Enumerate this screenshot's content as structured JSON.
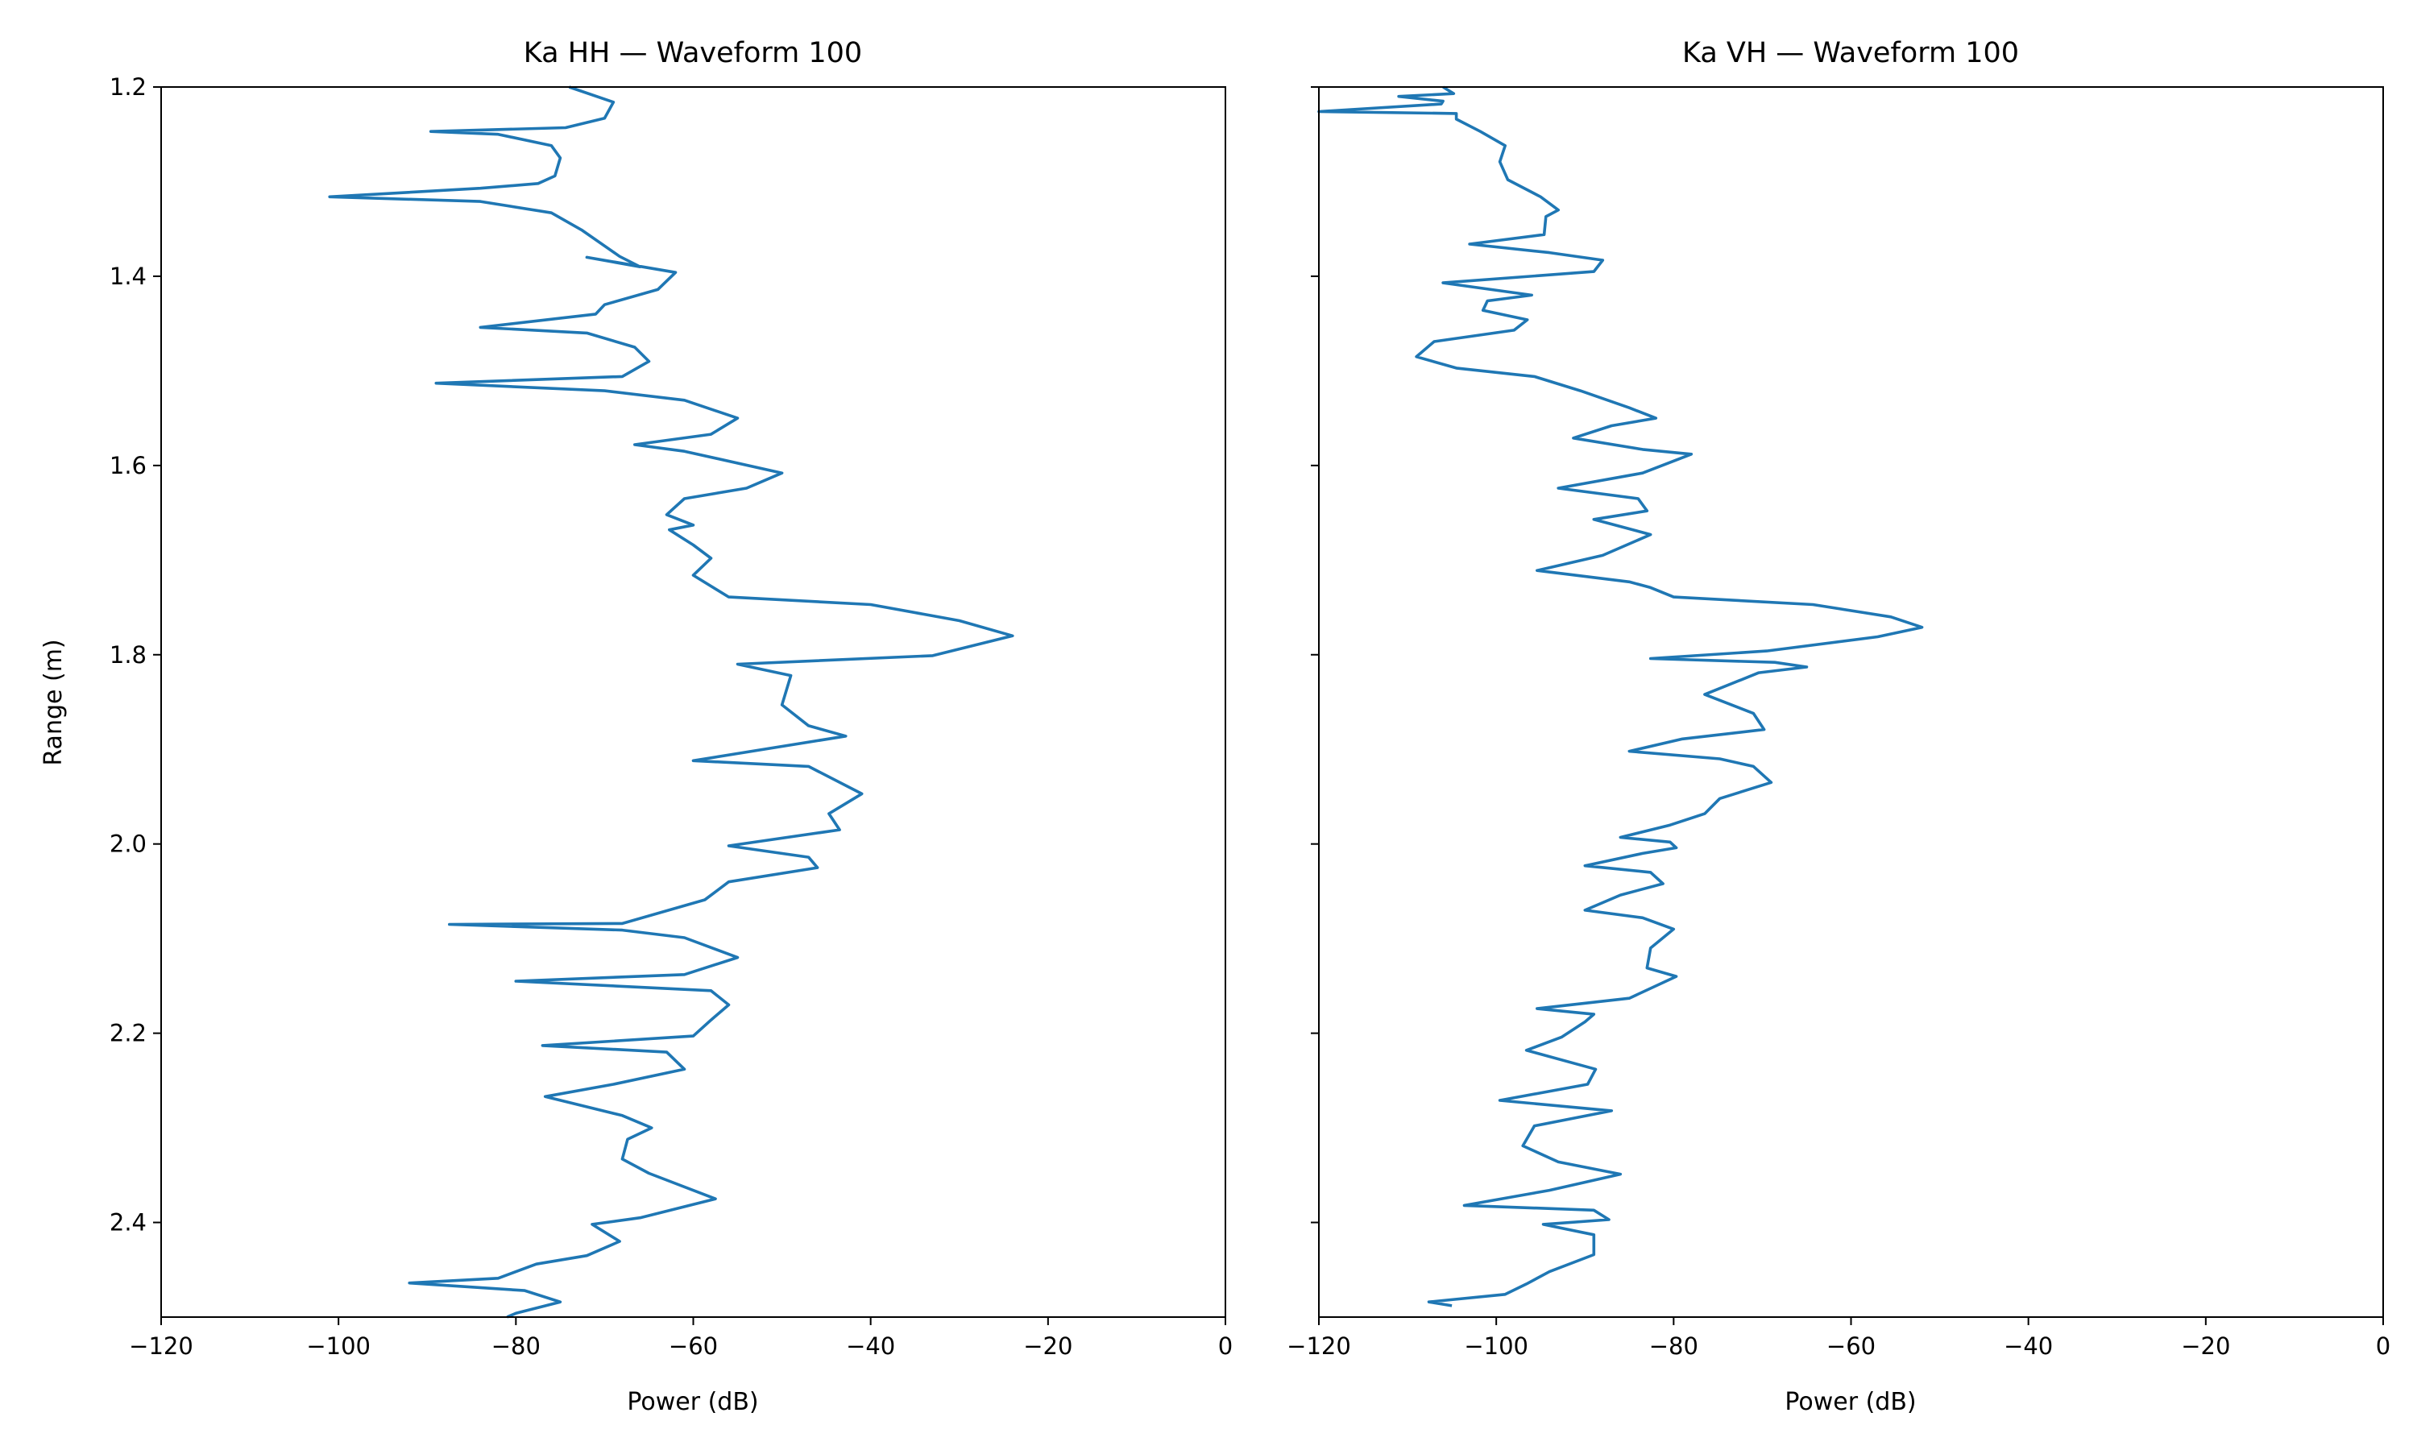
{
  "chart_data": [
    {
      "type": "line",
      "title": "Ka HH — Waveform 100",
      "xlabel": "Power (dB)",
      "ylabel": "Range (m)",
      "xlim": [
        -120,
        0
      ],
      "ylim": [
        2.5,
        1.2
      ],
      "y_inverted": true,
      "xticks": [
        -120,
        -100,
        -80,
        -60,
        -40,
        -20,
        0
      ],
      "xtick_labels": [
        "−120",
        "−100",
        "−80",
        "−60",
        "−40",
        "−20",
        "0"
      ],
      "yticks": [
        1.2,
        1.4,
        1.6,
        1.8,
        2.0,
        2.2,
        2.4
      ],
      "ytick_labels": [
        "1.2",
        "1.4",
        "1.6",
        "1.8",
        "2.0",
        "2.2",
        "2.4"
      ],
      "color": "#1f77b4",
      "series": [
        {
          "name": "Ka HH",
          "range": [
            1.2,
            1.216,
            1.233,
            1.243,
            1.247,
            1.25,
            1.262,
            1.275,
            1.294,
            1.302,
            1.307,
            1.316,
            1.321,
            1.333,
            1.351,
            1.379,
            1.39,
            1.38,
            1.396,
            1.414,
            1.43,
            1.44,
            1.454,
            1.46,
            1.475,
            1.49,
            1.506,
            1.513,
            1.521,
            1.531,
            1.55,
            1.567,
            1.578,
            1.585,
            1.608,
            1.624,
            1.635,
            1.652,
            1.663,
            1.668,
            1.684,
            1.698,
            1.716,
            1.739,
            1.747,
            1.764,
            1.78,
            1.801,
            1.81,
            1.822,
            1.853,
            1.875,
            1.886,
            1.912,
            1.918,
            1.947,
            1.968,
            1.985,
            2.002,
            2.014,
            2.025,
            2.04,
            2.059,
            2.084,
            2.085,
            2.091,
            2.099,
            2.12,
            2.138,
            2.145,
            2.155,
            2.17,
            2.186,
            2.203,
            2.213,
            2.22,
            2.238,
            2.254,
            2.267,
            2.287,
            2.3,
            2.312,
            2.333,
            2.348,
            2.375,
            2.395,
            2.402,
            2.42,
            2.435,
            2.444,
            2.459,
            2.464,
            2.472,
            2.484,
            2.496,
            2.5
          ],
          "power": [
            -74,
            -69,
            -70,
            -74.4,
            -89.6,
            -82,
            -76,
            -75,
            -75.6,
            -77.5,
            -84,
            -101,
            -84,
            -76,
            -72.6,
            -68.3,
            -66,
            -72,
            -62,
            -64,
            -70,
            -71,
            -84,
            -72,
            -66.6,
            -65,
            -68,
            -89,
            -70,
            -61,
            -55,
            -58,
            -66.6,
            -61,
            -50,
            -54,
            -61,
            -63,
            -60,
            -62.7,
            -60,
            -58,
            -60,
            -56,
            -40,
            -30,
            -24,
            -33,
            -55,
            -49,
            -50,
            -47,
            -42.8,
            -60,
            -47,
            -41,
            -44.7,
            -43.5,
            -56,
            -47,
            -46,
            -56,
            -58.7,
            -68,
            -87.5,
            -68,
            -61,
            -55,
            -61,
            -80,
            -58,
            -56,
            -58,
            -60,
            -77,
            -63,
            -61,
            -69,
            -76.7,
            -68,
            -64.7,
            -67.4,
            -68,
            -65,
            -57.5,
            -66,
            -71.4,
            -68.3,
            -72,
            -77.7,
            -82,
            -92,
            -79,
            -75,
            -80,
            -81
          ]
        }
      ]
    },
    {
      "type": "line",
      "title": "Ka VH — Waveform 100",
      "xlabel": "Power (dB)",
      "ylabel": "",
      "xlim": [
        -120,
        0
      ],
      "ylim": [
        2.5,
        1.2
      ],
      "y_inverted": true,
      "sharey": true,
      "xticks": [
        -120,
        -100,
        -80,
        -60,
        -40,
        -20,
        0
      ],
      "xtick_labels": [
        "−120",
        "−100",
        "−80",
        "−60",
        "−40",
        "−20",
        "0"
      ],
      "yticks": [
        1.2,
        1.4,
        1.6,
        1.8,
        2.0,
        2.2,
        2.4
      ],
      "color": "#1f77b4",
      "series": [
        {
          "name": "Ka VH",
          "range": [
            1.2,
            1.207,
            1.21,
            1.215,
            1.218,
            1.226,
            1.228,
            1.234,
            1.247,
            1.262,
            1.279,
            1.298,
            1.316,
            1.33,
            1.337,
            1.356,
            1.366,
            1.375,
            1.383,
            1.395,
            1.407,
            1.42,
            1.426,
            1.436,
            1.446,
            1.457,
            1.469,
            1.485,
            1.497,
            1.506,
            1.521,
            1.539,
            1.55,
            1.558,
            1.571,
            1.583,
            1.588,
            1.608,
            1.624,
            1.635,
            1.648,
            1.657,
            1.673,
            1.695,
            1.711,
            1.723,
            1.729,
            1.739,
            1.747,
            1.76,
            1.771,
            1.781,
            1.796,
            1.804,
            1.808,
            1.813,
            1.819,
            1.842,
            1.862,
            1.879,
            1.889,
            1.902,
            1.91,
            1.918,
            1.935,
            1.952,
            1.968,
            1.98,
            1.993,
            1.998,
            2.004,
            2.01,
            2.023,
            2.03,
            2.042,
            2.054,
            2.07,
            2.078,
            2.09,
            2.11,
            2.131,
            2.14,
            2.163,
            2.174,
            2.18,
            2.188,
            2.204,
            2.218,
            2.238,
            2.254,
            2.271,
            2.282,
            2.298,
            2.319,
            2.336,
            2.349,
            2.366,
            2.382,
            2.387,
            2.397,
            2.402,
            2.413,
            2.421,
            2.434,
            2.452,
            2.465,
            2.476,
            2.484,
            2.488,
            2.5
          ],
          "power": [
            -106,
            -104.8,
            -111,
            -106,
            -106.2,
            -120,
            -104.5,
            -104.5,
            -101.8,
            -99,
            -99.6,
            -98.7,
            -95,
            -93,
            -94.4,
            -94.6,
            -103,
            -94,
            -88,
            -89,
            -106,
            -96,
            -101,
            -101.5,
            -96.5,
            -98,
            -107,
            -109,
            -104.5,
            -95.7,
            -90.5,
            -85,
            -82,
            -87,
            -91.3,
            -83.5,
            -78,
            -83.5,
            -93,
            -84,
            -83,
            -89,
            -82.6,
            -88,
            -95.4,
            -85,
            -82.6,
            -80,
            -64.3,
            -55.5,
            -52,
            -57,
            -69.5,
            -82.6,
            -68.6,
            -65,
            -70.4,
            -76.5,
            -71,
            -69.8,
            -79,
            -85,
            -74.8,
            -71,
            -69,
            -74.8,
            -76.5,
            -80.4,
            -86,
            -80.4,
            -79.7,
            -83.5,
            -90,
            -82.6,
            -81.2,
            -86,
            -90,
            -83.5,
            -80,
            -82.6,
            -83,
            -79.7,
            -85,
            -95.4,
            -89,
            -90,
            -92.6,
            -96.6,
            -88.8,
            -89.7,
            -99.6,
            -87,
            -95.7,
            -97,
            -93,
            -86,
            -94,
            -103.6,
            -89,
            -87.3,
            -94.7,
            -89,
            -89,
            -89,
            -94,
            -96.6,
            -99,
            -107.6,
            -105
          ]
        }
      ]
    }
  ]
}
